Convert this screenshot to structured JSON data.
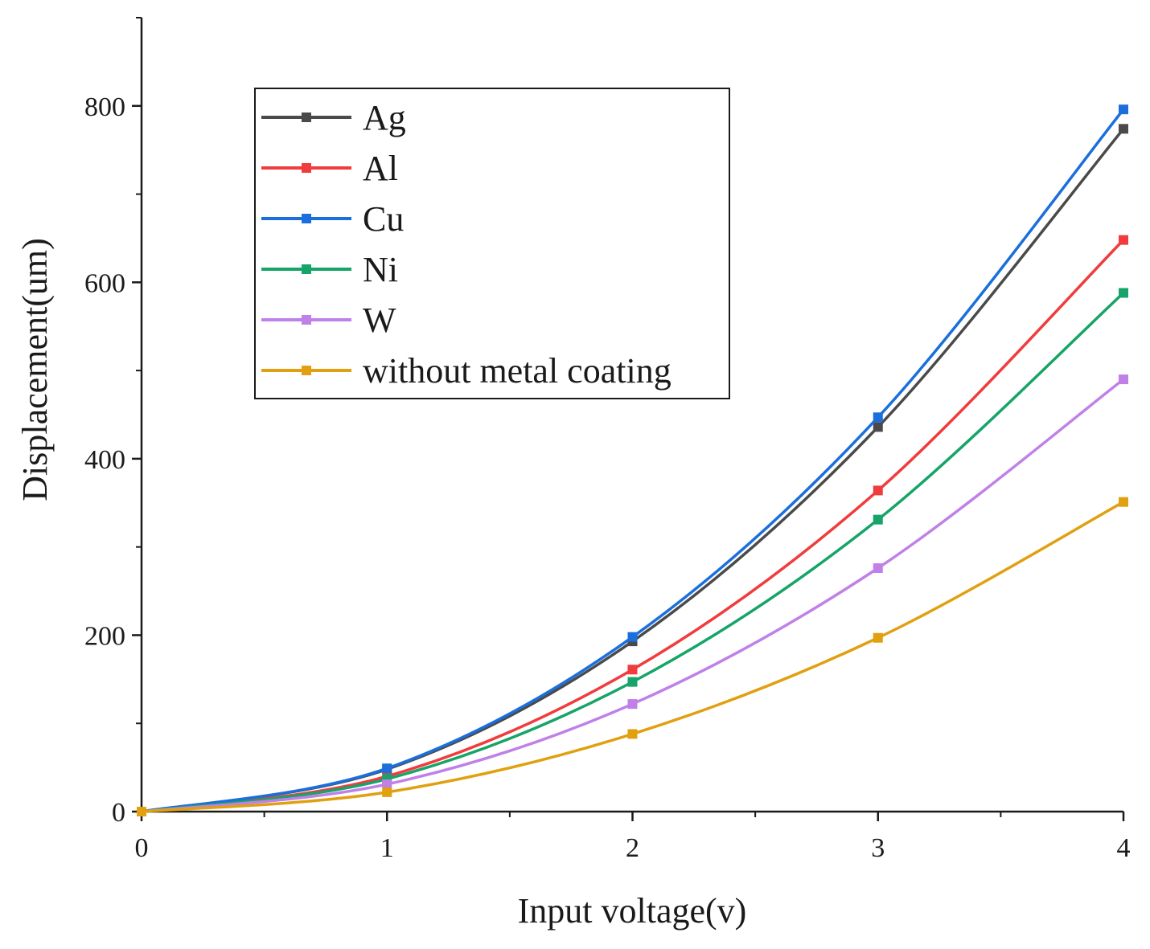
{
  "chart_data": {
    "type": "line",
    "title": "",
    "xlabel": "Input voltage(v)",
    "ylabel": "Displacement(um)",
    "xlim": [
      0,
      4
    ],
    "ylim": [
      0,
      900
    ],
    "x_ticks": [
      0,
      1,
      2,
      3,
      4
    ],
    "x_tick_labels": [
      "0",
      "1",
      "2",
      "3",
      "4"
    ],
    "y_ticks": [
      0,
      200,
      400,
      600,
      800
    ],
    "y_tick_labels": [
      "0",
      "200",
      "400",
      "600",
      "800"
    ],
    "grid": false,
    "legend_position": "top-left",
    "x": [
      0,
      1,
      2,
      3,
      4
    ],
    "series": [
      {
        "name": "Ag",
        "color": "#4a4a4a",
        "values": [
          0,
          48,
          193,
          436,
          774
        ]
      },
      {
        "name": "Al",
        "color": "#f03c3c",
        "values": [
          0,
          40,
          161,
          364,
          648
        ]
      },
      {
        "name": "Cu",
        "color": "#1a6fdc",
        "values": [
          0,
          49,
          198,
          447,
          796
        ]
      },
      {
        "name": "Ni",
        "color": "#16a468",
        "values": [
          0,
          37,
          147,
          331,
          588
        ]
      },
      {
        "name": "W",
        "color": "#c080e8",
        "values": [
          0,
          31,
          122,
          276,
          490
        ]
      },
      {
        "name": "without metal coating",
        "color": "#e0a010",
        "values": [
          0,
          22,
          88,
          197,
          351
        ]
      }
    ]
  }
}
